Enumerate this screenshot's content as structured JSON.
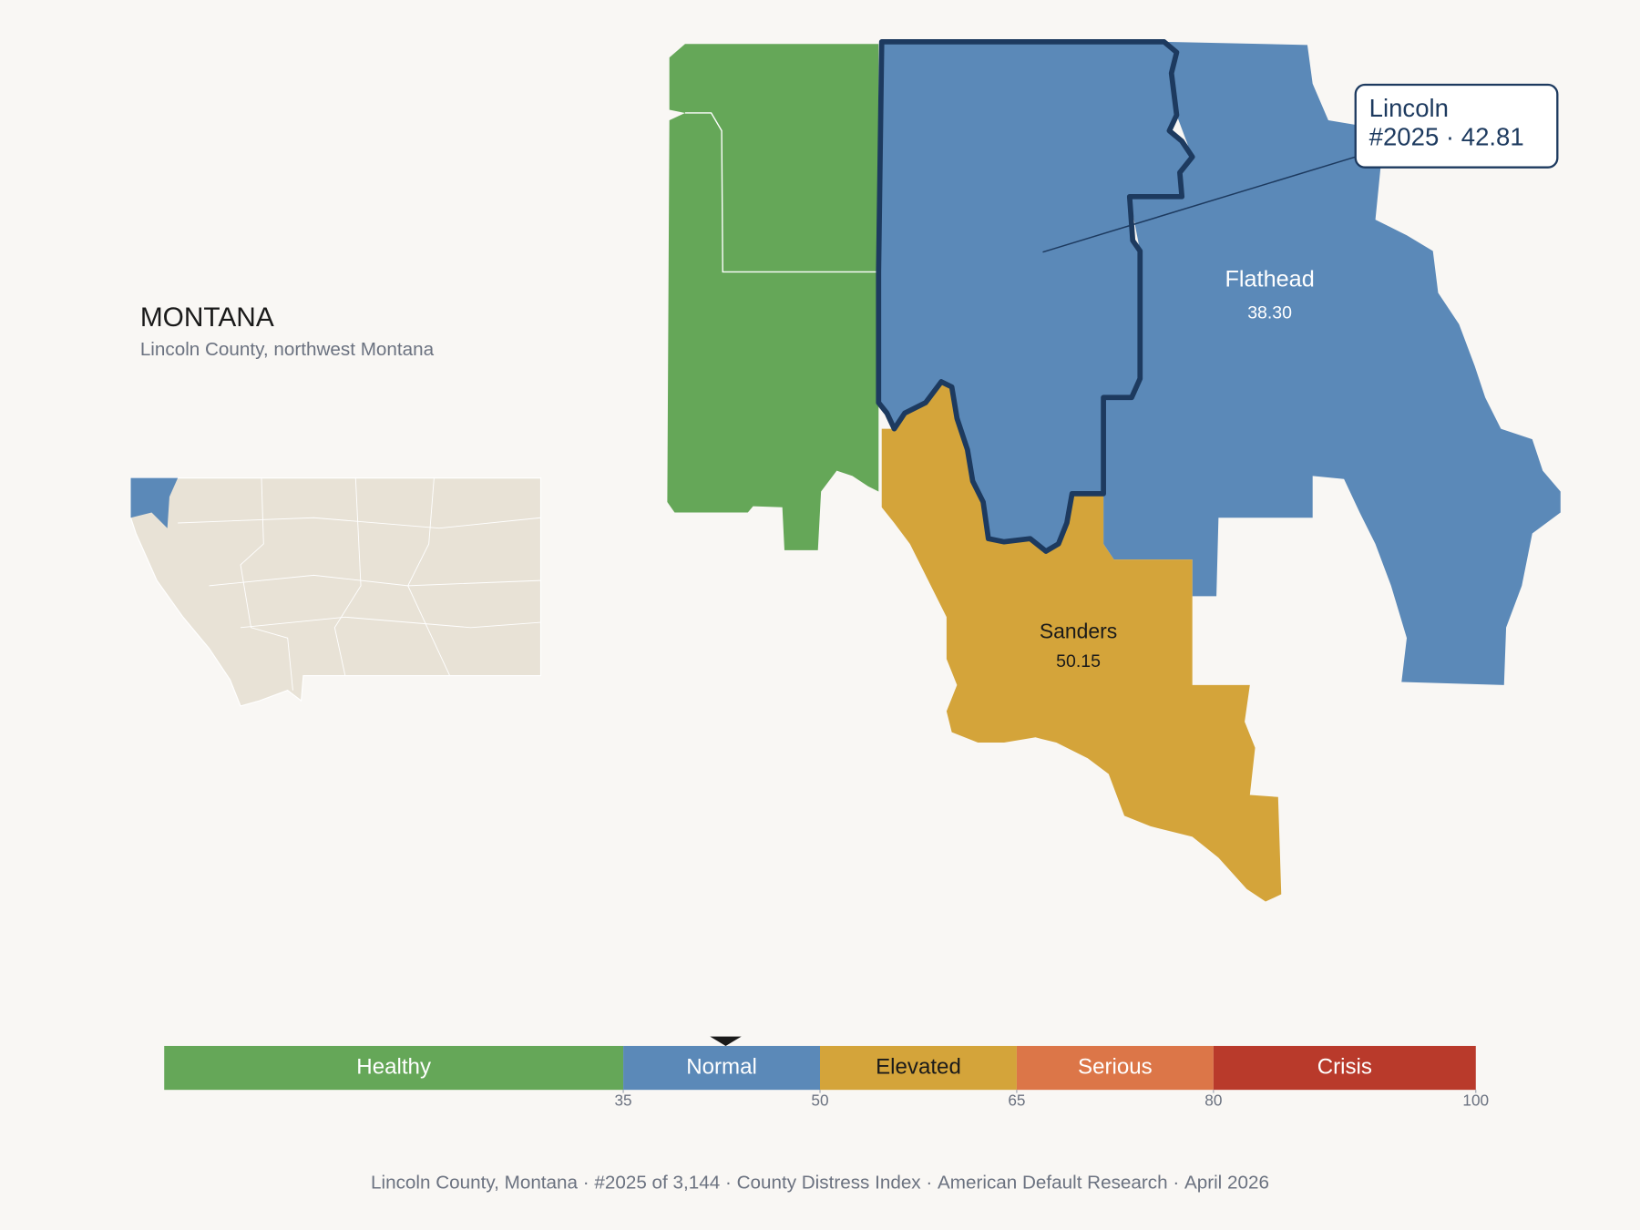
{
  "header": {
    "title": "MONTANA",
    "subtitle": "Lincoln County, northwest Montana"
  },
  "callout": {
    "name": "Lincoln",
    "rank": "#2025",
    "value": 42.81
  },
  "counties": [
    {
      "name": "Flathead",
      "value": 38.3,
      "value_label": "38.30"
    },
    {
      "name": "Sanders",
      "value": 50.15
    }
  ],
  "scale": {
    "xlim": [
      0,
      100
    ],
    "xticks": [
      35,
      50,
      65,
      80,
      100
    ],
    "categories": [
      "Healthy",
      "Normal",
      "Elevated",
      "Serious",
      "Crisis"
    ],
    "colors": [
      "#65a758",
      "#5b89b8",
      "#d4a43a",
      "#dc7648",
      "#b93a2b"
    ]
  },
  "footer": [
    "Lincoln County, Montana",
    "#2025 of 3,144",
    "County Distress Index",
    "American Default Research",
    "April 2026"
  ]
}
